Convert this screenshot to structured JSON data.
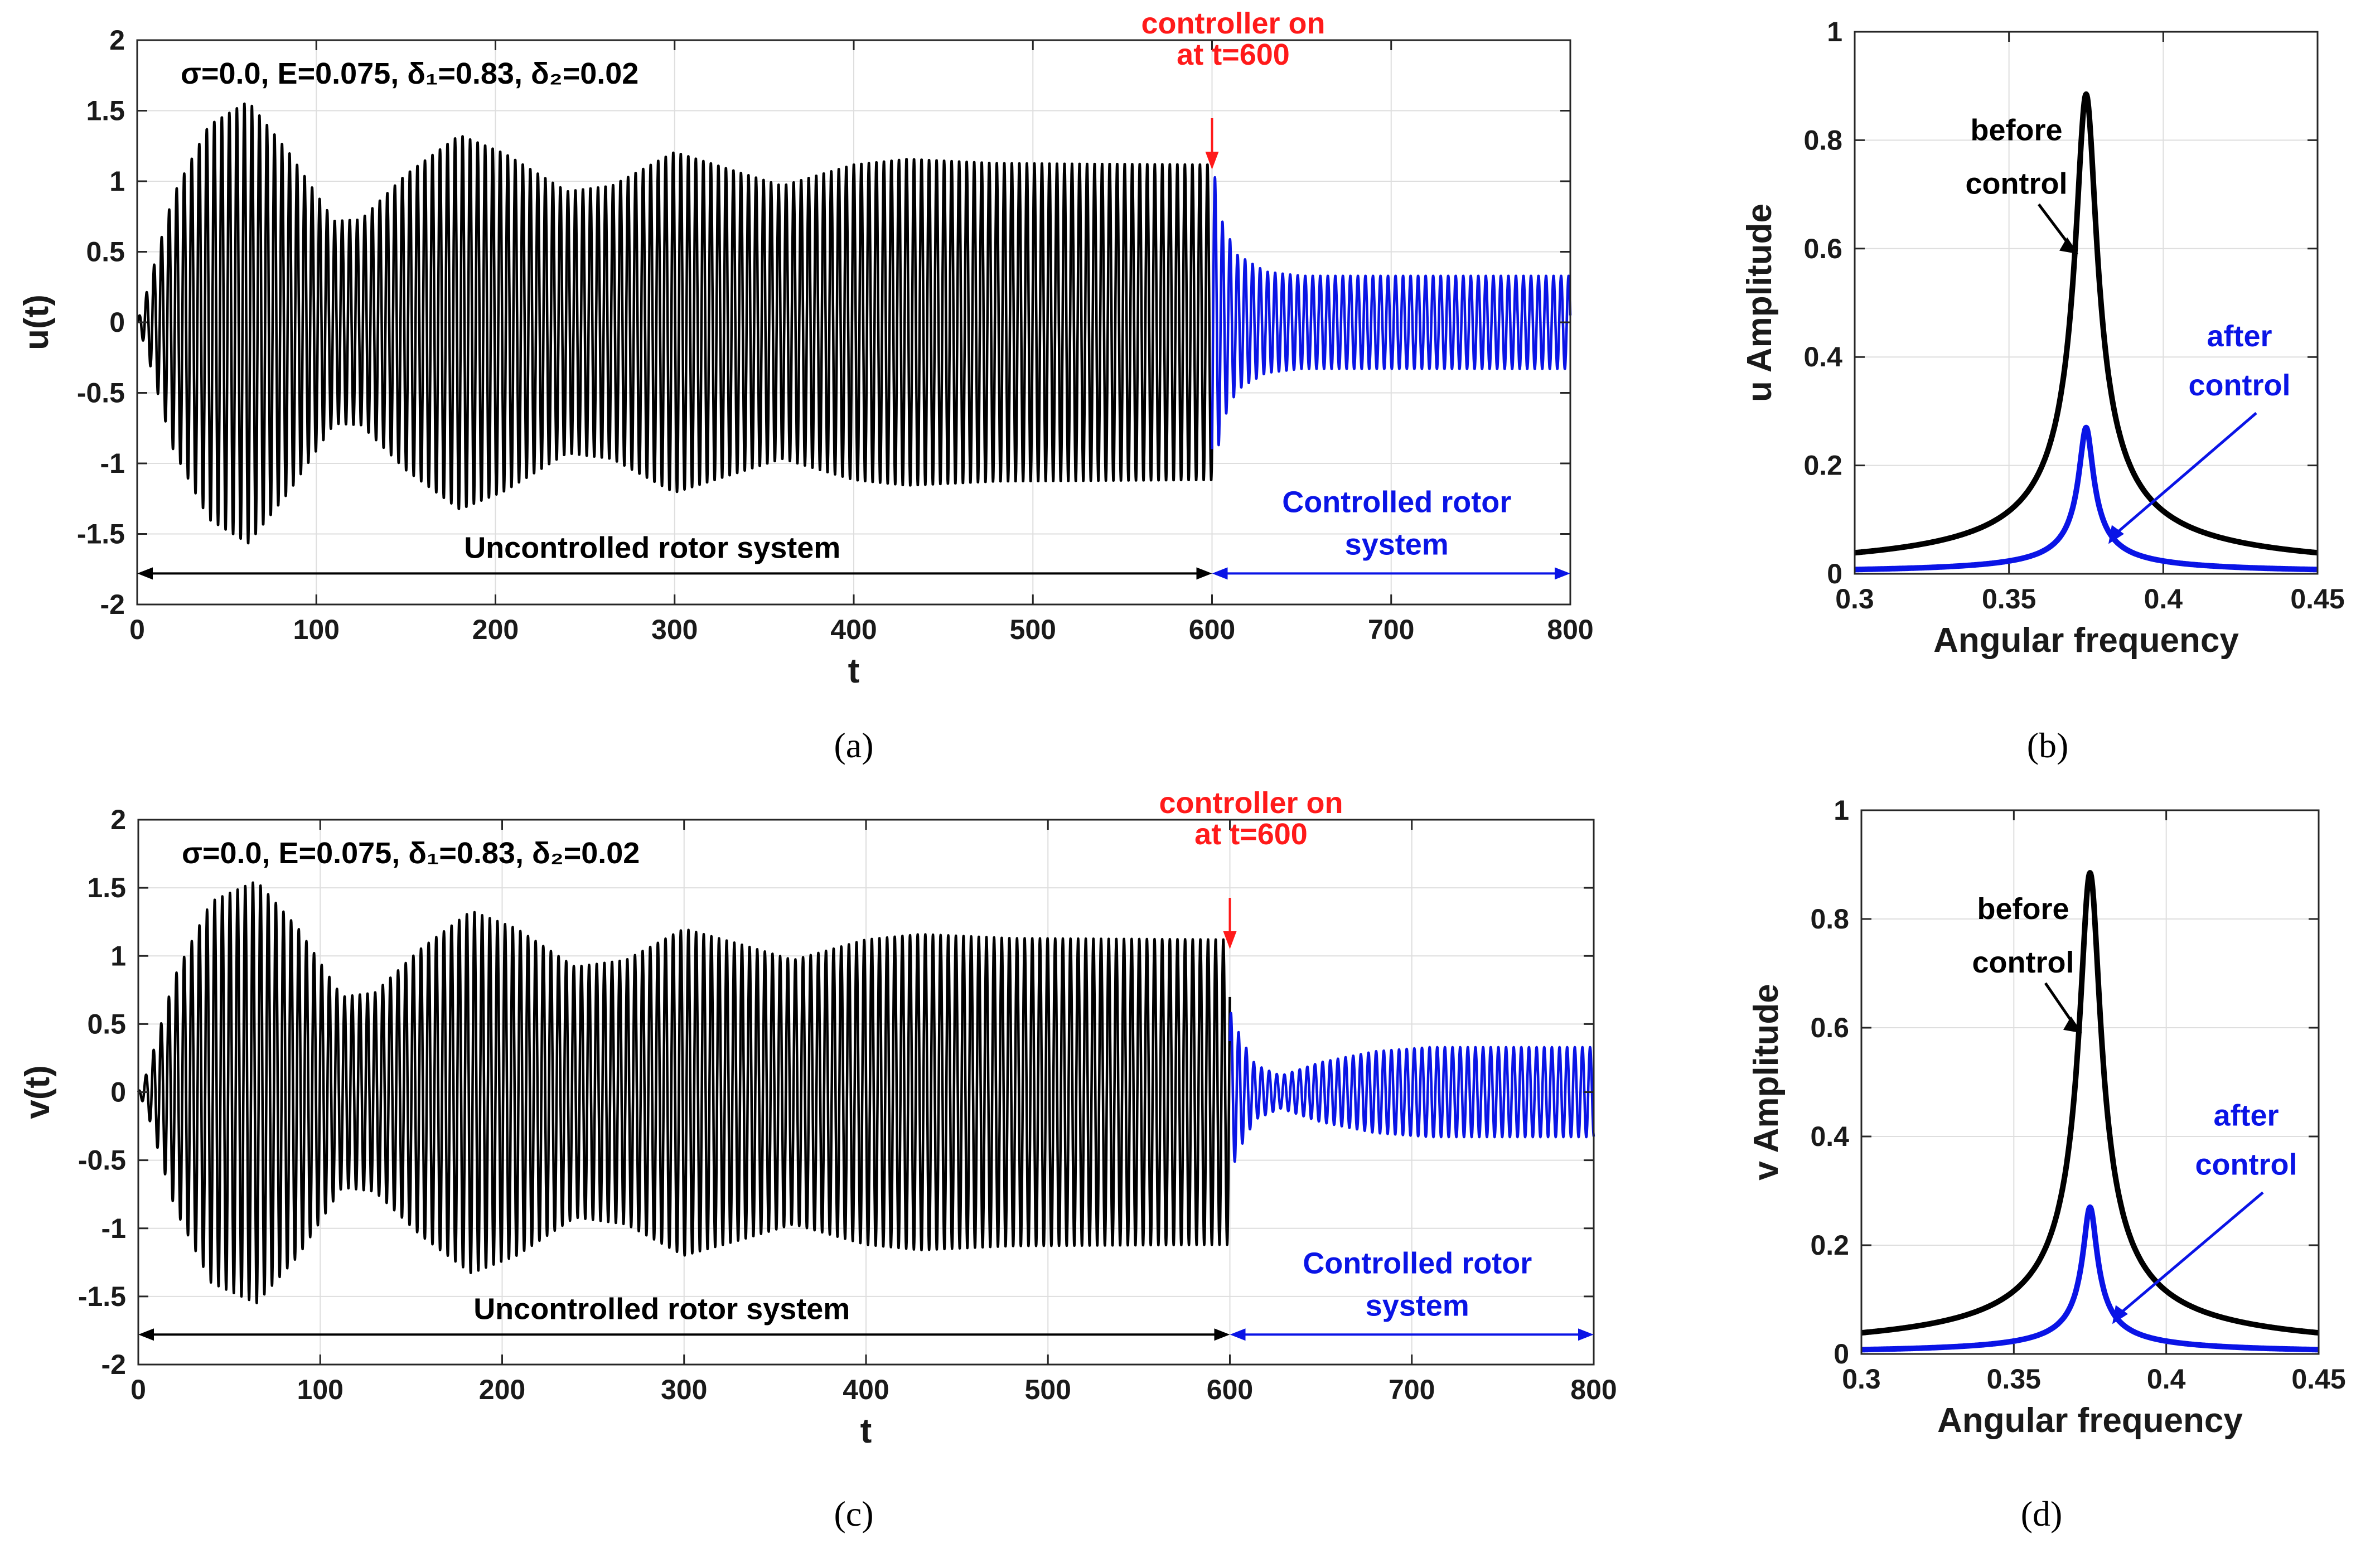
{
  "chart_data": [
    {
      "id": "a",
      "type": "line",
      "panel_label": "(a)",
      "title_text": "σ=0.0, E=0.075, δ₁=0.83, δ₂=0.02",
      "xlabel": "t",
      "ylabel": "u(t)",
      "xlim": [
        0,
        800
      ],
      "ylim": [
        -2,
        2
      ],
      "xticks": [
        0,
        100,
        200,
        300,
        400,
        500,
        600,
        700,
        800
      ],
      "yticks": [
        -2,
        -1.5,
        -1,
        -0.5,
        0,
        0.5,
        1,
        1.5,
        2
      ],
      "grid": true,
      "series": [
        {
          "name": "Uncontrolled rotor system",
          "color": "#000000",
          "t_range": [
            0,
            600
          ],
          "period": 4.2,
          "phase": 0,
          "envelope": [
            [
              0,
              0
            ],
            [
              5,
              0.2
            ],
            [
              20,
              0.9
            ],
            [
              40,
              1.4
            ],
            [
              62,
              1.57
            ],
            [
              85,
              1.2
            ],
            [
              110,
              0.72
            ],
            [
              125,
              0.73
            ],
            [
              150,
              1.05
            ],
            [
              180,
              1.33
            ],
            [
              205,
              1.2
            ],
            [
              240,
              0.93
            ],
            [
              265,
              0.97
            ],
            [
              300,
              1.21
            ],
            [
              335,
              1.07
            ],
            [
              360,
              0.97
            ],
            [
              400,
              1.12
            ],
            [
              430,
              1.16
            ],
            [
              480,
              1.13
            ],
            [
              600,
              1.12
            ]
          ]
        },
        {
          "name": "Controlled rotor system",
          "color": "#0a14e6",
          "t_range": [
            600,
            800
          ],
          "period": 4.2,
          "phase": 0,
          "envelope": [
            [
              600,
              1.15
            ],
            [
              606,
              0.7
            ],
            [
              614,
              0.48
            ],
            [
              630,
              0.36
            ],
            [
              650,
              0.33
            ],
            [
              800,
              0.33
            ]
          ]
        }
      ],
      "annotations": {
        "controller_on": "controller on\nat t=600",
        "uncontrolled": "Uncontrolled rotor system",
        "controlled": "Controlled rotor\nsystem",
        "controller_t": 600
      }
    },
    {
      "id": "b",
      "type": "line",
      "panel_label": "(b)",
      "xlabel": "Angular frequency",
      "ylabel": "u Amplitude",
      "xlim": [
        0.3,
        0.45
      ],
      "ylim": [
        0,
        1
      ],
      "xticks": [
        0.3,
        0.35,
        0.4,
        0.45
      ],
      "yticks": [
        0,
        0.2,
        0.4,
        0.6,
        0.8,
        1
      ],
      "grid": true,
      "peak_frequency": 0.375,
      "series": [
        {
          "name": "before control",
          "color": "#000000",
          "peak": 0.885,
          "width": 0.0033
        },
        {
          "name": "after control",
          "color": "#0a14e6",
          "peak": 0.27,
          "width": 0.0022
        }
      ],
      "annotations": {
        "before": "before\ncontrol",
        "after": "after\ncontrol"
      }
    },
    {
      "id": "c",
      "type": "line",
      "panel_label": "(c)",
      "title_text": "σ=0.0, E=0.075, δ₁=0.83, δ₂=0.02",
      "xlabel": "t",
      "ylabel": "v(t)",
      "xlim": [
        0,
        800
      ],
      "ylim": [
        -2,
        2
      ],
      "xticks": [
        0,
        100,
        200,
        300,
        400,
        500,
        600,
        700,
        800
      ],
      "yticks": [
        -2,
        -1.5,
        -1,
        -0.5,
        0,
        0.5,
        1,
        1.5,
        2
      ],
      "grid": true,
      "series": [
        {
          "name": "Uncontrolled rotor system",
          "color": "#000000",
          "t_range": [
            0,
            600
          ],
          "period": 4.2,
          "phase": 1.5708,
          "envelope": [
            [
              0,
              0
            ],
            [
              5,
              0.15
            ],
            [
              20,
              0.85
            ],
            [
              40,
              1.4
            ],
            [
              65,
              1.55
            ],
            [
              88,
              1.2
            ],
            [
              112,
              0.7
            ],
            [
              130,
              0.73
            ],
            [
              155,
              1.05
            ],
            [
              183,
              1.33
            ],
            [
              208,
              1.2
            ],
            [
              240,
              0.92
            ],
            [
              268,
              0.97
            ],
            [
              300,
              1.2
            ],
            [
              335,
              1.07
            ],
            [
              360,
              0.97
            ],
            [
              400,
              1.12
            ],
            [
              430,
              1.16
            ],
            [
              480,
              1.13
            ],
            [
              600,
              1.12
            ]
          ]
        },
        {
          "name": "Controlled rotor system",
          "color": "#0a14e6",
          "t_range": [
            600,
            800
          ],
          "period": 4.2,
          "phase": 1.5708,
          "envelope": [
            [
              600,
              0.6
            ],
            [
              606,
              0.4
            ],
            [
              614,
              0.2
            ],
            [
              628,
              0.12
            ],
            [
              650,
              0.22
            ],
            [
              680,
              0.3
            ],
            [
              710,
              0.33
            ],
            [
              800,
              0.33
            ]
          ]
        }
      ],
      "annotations": {
        "controller_on": "controller on\nat t=600",
        "uncontrolled": "Uncontrolled rotor system",
        "controlled": "Controlled rotor\nsystem",
        "controller_t": 600
      }
    },
    {
      "id": "d",
      "type": "line",
      "panel_label": "(d)",
      "xlabel": "Angular frequency",
      "ylabel": "v Amplitude",
      "xlim": [
        0.3,
        0.45
      ],
      "ylim": [
        0,
        1
      ],
      "xticks": [
        0.3,
        0.35,
        0.4,
        0.45
      ],
      "yticks": [
        0,
        0.2,
        0.4,
        0.6,
        0.8,
        1
      ],
      "grid": true,
      "peak_frequency": 0.375,
      "series": [
        {
          "name": "before control",
          "color": "#000000",
          "peak": 0.885,
          "width": 0.0033
        },
        {
          "name": "after control",
          "color": "#0a14e6",
          "peak": 0.27,
          "width": 0.0022
        }
      ],
      "annotations": {
        "before": "before\ncontrol",
        "after": "after\ncontrol"
      }
    }
  ],
  "colors": {
    "uncontrolled": "#000000",
    "controlled": "#0a14e6",
    "controller_marker": "#ff1a1a",
    "grid": "#dedede"
  }
}
